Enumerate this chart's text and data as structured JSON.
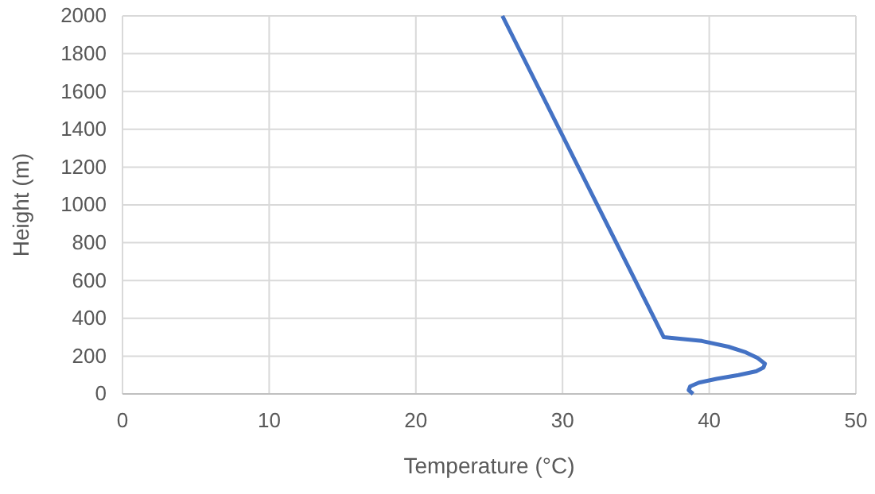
{
  "chart_data": {
    "type": "line",
    "xlabel": "Temperature (°C)",
    "ylabel": "Height (m)",
    "xlim": [
      0,
      50
    ],
    "xticks": [
      0,
      10,
      20,
      30,
      40,
      50
    ],
    "ylim": [
      0,
      2000
    ],
    "yticks": [
      0,
      200,
      400,
      600,
      800,
      1000,
      1200,
      1400,
      1600,
      1800,
      2000
    ],
    "grid": true,
    "marker": "none",
    "line_style": "solid",
    "series": [
      {
        "color": "#4472c4",
        "x": [
          25.9,
          36.9,
          39.5,
          41.3,
          42.5,
          43.3,
          43.8,
          43.7,
          43.2,
          42.0,
          40.5,
          39.3,
          38.7,
          38.6,
          38.9
        ],
        "values": [
          2000,
          300,
          280,
          250,
          220,
          190,
          160,
          140,
          120,
          100,
          80,
          60,
          40,
          20,
          0
        ]
      }
    ]
  }
}
